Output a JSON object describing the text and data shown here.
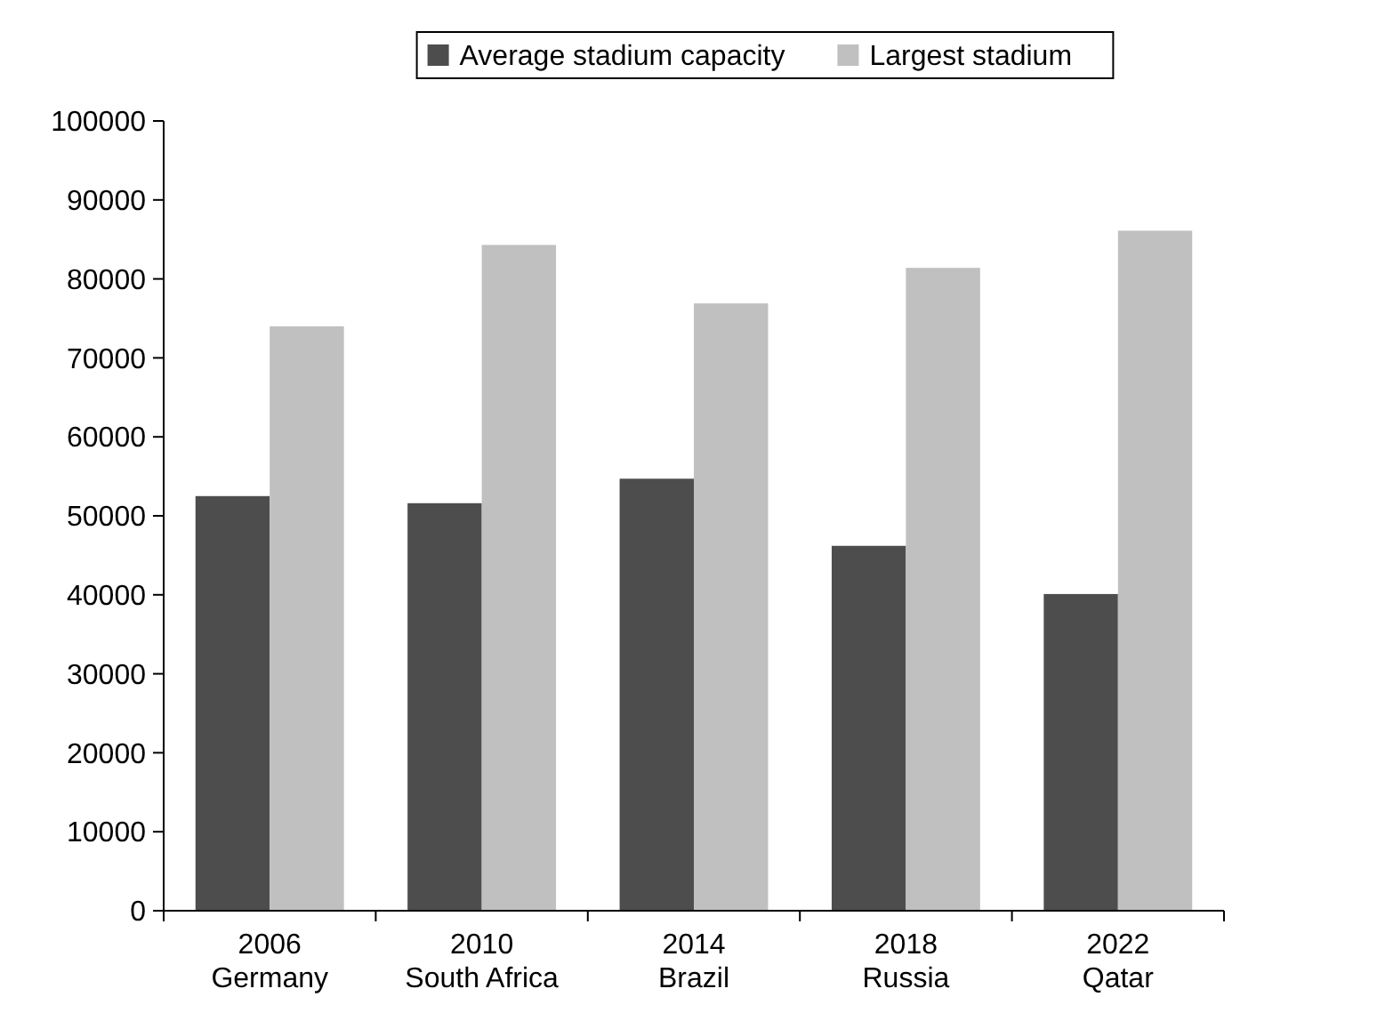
{
  "chart_data": {
    "type": "bar",
    "categories": [
      "2006\nGermany",
      "2010\nSouth Africa",
      "2014\nBrazil",
      "2018\nRussia",
      "2022\nQatar"
    ],
    "series": [
      {
        "name": "Average stadium capacity",
        "color": "#4d4d4d",
        "values": [
          52500,
          51600,
          54700,
          46200,
          40100
        ]
      },
      {
        "name": "Largest stadium",
        "color": "#c0c0c0",
        "values": [
          74000,
          84300,
          76900,
          81400,
          86100
        ]
      }
    ],
    "ylim": [
      0,
      100000
    ],
    "yticks": [
      0,
      10000,
      20000,
      30000,
      40000,
      50000,
      60000,
      70000,
      80000,
      90000,
      100000
    ],
    "grid": false,
    "legend": "top"
  }
}
